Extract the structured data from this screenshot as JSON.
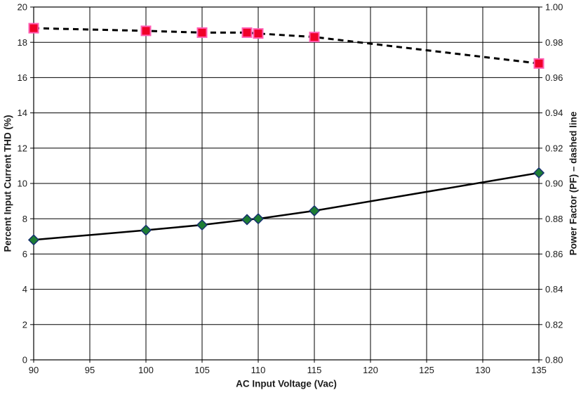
{
  "chart_data": {
    "type": "line",
    "title": "",
    "xlabel": "AC Input Voltage (Vac)",
    "ylabel_left": "Percent Input Current THD (%)",
    "ylabel_right": "Power Factor (PF) – dashed line",
    "xlim": [
      90,
      135
    ],
    "x_ticks": [
      90,
      95,
      100,
      105,
      110,
      115,
      120,
      125,
      130,
      135
    ],
    "ylim_left": [
      0,
      20
    ],
    "y_left_ticks": [
      0,
      2,
      4,
      6,
      8,
      10,
      12,
      14,
      16,
      18,
      20
    ],
    "ylim_right": [
      0.8,
      1.0
    ],
    "y_right_tick_labels": [
      "0.80",
      "0.82",
      "0.84",
      "0.86",
      "0.88",
      "0.90",
      "0.92",
      "0.94",
      "0.96",
      "0.98",
      "1.00"
    ],
    "grid": true,
    "legend": "none",
    "colors": {
      "grid_line": "#000000",
      "axis_text": "#1a1a1a",
      "thd_line": "#000000",
      "thd_marker_fill": "#1e7e34",
      "thd_marker_stroke": "#16306e",
      "pf_line": "#000000",
      "pf_marker_fill": "#f00028",
      "pf_marker_stroke": "#ff5fb4"
    },
    "series": [
      {
        "name": "Percent Input Current THD",
        "axis": "left",
        "line_style": "solid",
        "marker": "diamond",
        "x": [
          90,
          100,
          105,
          109,
          110,
          115,
          135
        ],
        "y": [
          6.8,
          7.35,
          7.65,
          7.95,
          8.0,
          8.45,
          10.6
        ]
      },
      {
        "name": "Power Factor (PF)",
        "axis": "right",
        "line_style": "dashed",
        "marker": "square",
        "x": [
          90,
          100,
          105,
          109,
          110,
          115,
          135
        ],
        "y": [
          0.988,
          0.9865,
          0.9855,
          0.9855,
          0.985,
          0.983,
          0.968
        ]
      }
    ]
  }
}
